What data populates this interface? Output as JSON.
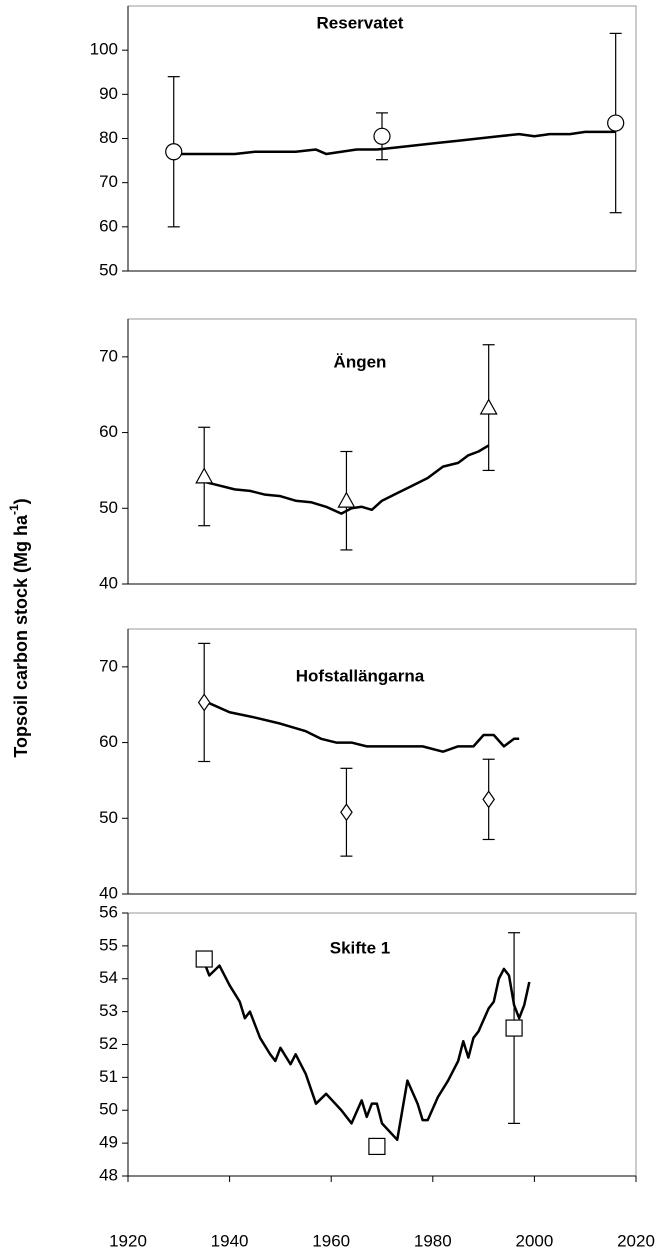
{
  "y_label": [
    "Topsoil carbon stock (Mg ha",
    "-1",
    ")"
  ],
  "chart_data": [
    {
      "type": "line",
      "title": "Reservatet",
      "xlim": [
        1920,
        2020
      ],
      "ylim": [
        50,
        110
      ],
      "yticks": [
        50,
        60,
        70,
        80,
        90,
        100
      ],
      "series": [
        {
          "type": "line",
          "color": "#000000",
          "x": [
            1929,
            1933,
            1937,
            1941,
            1945,
            1949,
            1953,
            1957,
            1959,
            1962,
            1965,
            1969,
            1973,
            1977,
            1981,
            1985,
            1989,
            1993,
            1997,
            2000,
            2003,
            2007,
            2010,
            2016
          ],
          "values": [
            76.5,
            76.5,
            76.5,
            76.5,
            77,
            77,
            77,
            77.5,
            76.5,
            77,
            77.5,
            77.5,
            78,
            78.5,
            79,
            79.5,
            80,
            80.5,
            81,
            80.5,
            81,
            81,
            81.5,
            81.5
          ]
        },
        {
          "type": "scatter",
          "marker": "circle",
          "color": "#000000",
          "x": [
            1929,
            1970,
            2016
          ],
          "values": [
            77,
            80.5,
            83.5
          ],
          "errors": [
            17,
            5.3,
            20.3
          ]
        }
      ]
    },
    {
      "type": "line",
      "title": "Ängen",
      "xlim": [
        1920,
        2020
      ],
      "ylim": [
        40,
        75
      ],
      "yticks": [
        40,
        50,
        60,
        70
      ],
      "series": [
        {
          "type": "line",
          "color": "#000000",
          "x": [
            1935,
            1938,
            1941,
            1944,
            1947,
            1950,
            1953,
            1956,
            1959,
            1962,
            1964,
            1966,
            1968,
            1970,
            1973,
            1976,
            1979,
            1982,
            1985,
            1987,
            1989,
            1991
          ],
          "values": [
            53.5,
            53,
            52.5,
            52.3,
            51.8,
            51.6,
            51,
            50.8,
            50.2,
            49.3,
            50,
            50.2,
            49.8,
            51,
            52,
            53,
            54,
            55.5,
            56,
            57,
            57.5,
            58.3
          ]
        },
        {
          "type": "scatter",
          "marker": "triangle",
          "color": "#000000",
          "x": [
            1935,
            1963,
            1991
          ],
          "values": [
            54.2,
            51,
            63.3
          ],
          "errors": [
            6.5,
            6.5,
            8.3
          ]
        }
      ]
    },
    {
      "type": "line",
      "title": "Hofstallängarna",
      "xlim": [
        1920,
        2020
      ],
      "ylim": [
        40,
        75
      ],
      "yticks": [
        40,
        50,
        60,
        70
      ],
      "series": [
        {
          "type": "line",
          "color": "#000000",
          "x": [
            1935,
            1940,
            1945,
            1950,
            1955,
            1958,
            1961,
            1964,
            1967,
            1970,
            1974,
            1978,
            1982,
            1985,
            1988,
            1990,
            1992,
            1994,
            1996,
            1997
          ],
          "values": [
            65.5,
            64,
            63.3,
            62.5,
            61.5,
            60.5,
            60,
            60,
            59.5,
            59.5,
            59.5,
            59.5,
            58.8,
            59.5,
            59.5,
            61,
            61,
            59.5,
            60.5,
            60.5
          ]
        },
        {
          "type": "scatter",
          "marker": "diamond",
          "color": "#000000",
          "x": [
            1935,
            1963,
            1991
          ],
          "values": [
            65.3,
            50.8,
            52.5
          ],
          "errors": [
            7.8,
            5.8,
            5.3
          ]
        }
      ]
    },
    {
      "type": "line",
      "title": "Skifte 1",
      "xlim": [
        1920,
        2020
      ],
      "ylim": [
        48,
        56
      ],
      "yticks": [
        48,
        49,
        50,
        51,
        52,
        53,
        54,
        55,
        56
      ],
      "xticks": [
        1920,
        1940,
        1960,
        1980,
        2000,
        2020
      ],
      "series": [
        {
          "type": "line",
          "color": "#000000",
          "x": [
            1935,
            1936,
            1938,
            1940,
            1942,
            1943,
            1944,
            1946,
            1948,
            1949,
            1950,
            1952,
            1953,
            1955,
            1957,
            1959,
            1962,
            1964,
            1966,
            1967,
            1968,
            1969,
            1970,
            1973,
            1974,
            1975,
            1977,
            1978,
            1979,
            1981,
            1983,
            1985,
            1986,
            1987,
            1988,
            1989,
            1991,
            1992,
            1993,
            1994,
            1995,
            1996,
            1997,
            1998,
            1999
          ],
          "values": [
            54.5,
            54.1,
            54.4,
            53.8,
            53.3,
            52.8,
            53.0,
            52.2,
            51.7,
            51.5,
            51.9,
            51.4,
            51.7,
            51.1,
            50.2,
            50.5,
            50.0,
            49.6,
            50.3,
            49.8,
            50.2,
            50.2,
            49.6,
            49.1,
            50,
            50.9,
            50.2,
            49.7,
            49.7,
            50.4,
            50.9,
            51.5,
            52.1,
            51.6,
            52.2,
            52.4,
            53.1,
            53.3,
            54,
            54.3,
            54.1,
            53.2,
            52.8,
            53.2,
            53.9
          ]
        },
        {
          "type": "scatter",
          "marker": "square",
          "color": "#000000",
          "x": [
            1935,
            1969,
            1996
          ],
          "values": [
            54.6,
            48.9,
            52.5
          ],
          "errors": [
            null,
            null,
            2.9
          ]
        }
      ]
    }
  ]
}
